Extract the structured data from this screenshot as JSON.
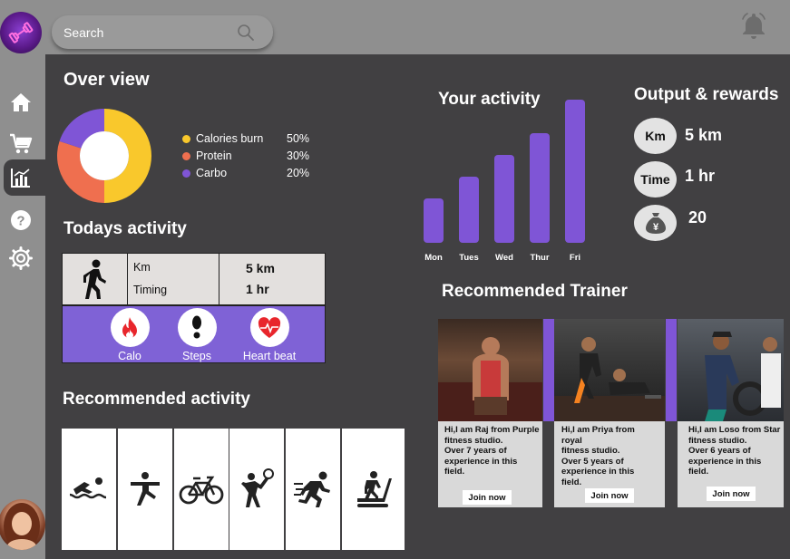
{
  "search": {
    "placeholder": "Search"
  },
  "icons": {
    "logo": "dumbbell-icon",
    "bell": "bell-icon",
    "search": "search-icon"
  },
  "sidebar": {
    "items": [
      "home-icon",
      "cart-icon",
      "chart-icon",
      "help-icon",
      "settings-icon"
    ],
    "active_index": 2
  },
  "overview": {
    "title": "Over view",
    "legend": [
      {
        "label": "Calories burn",
        "value": "50%",
        "color": "#f9c82c"
      },
      {
        "label": "Protein",
        "value": "30%",
        "color": "#ef6f4f"
      },
      {
        "label": "Carbo",
        "value": "20%",
        "color": "#7f55d6"
      }
    ],
    "chart_data": {
      "type": "pie",
      "categories": [
        "Calories burn",
        "Protein",
        "Carbo"
      ],
      "values": [
        50,
        30,
        20
      ],
      "colors": [
        "#f9c82c",
        "#ef6f4f",
        "#7f55d6"
      ],
      "title": ""
    }
  },
  "todays_activity": {
    "title": "Todays activity",
    "rows": [
      {
        "label": "Km",
        "value": "5 km"
      },
      {
        "label": "Timing",
        "value": "1 hr"
      }
    ],
    "metrics": [
      {
        "label": "Calo",
        "icon": "flame-icon"
      },
      {
        "label": "Steps",
        "icon": "footsteps-icon"
      },
      {
        "label": "Heart beat",
        "icon": "heartbeat-icon"
      }
    ]
  },
  "recommended_activity": {
    "title": "Recommended activity",
    "items": [
      "swimming-icon",
      "stretching-icon",
      "cycling-icon",
      "tennis-icon",
      "running-icon",
      "treadmill-icon"
    ]
  },
  "your_activity": {
    "title": "Your activity",
    "chart_data": {
      "type": "bar",
      "categories": [
        "Mon",
        "Tues",
        "Wed",
        "Thur",
        "Fri"
      ],
      "values": [
        2,
        3,
        4,
        5,
        6.5
      ],
      "color": "#7f55d6",
      "ylim": [
        0,
        7
      ]
    }
  },
  "rewards": {
    "title": "Output & rewards",
    "items": [
      {
        "badge": "Km",
        "value": "5 km"
      },
      {
        "badge": "Time",
        "value": "1 hr"
      },
      {
        "badge": "¥",
        "value": "20",
        "icon": "money-bag-icon"
      }
    ]
  },
  "trainers": {
    "title": "Recommended Trainer",
    "join_label": "Join now",
    "items": [
      {
        "lines": [
          "Hi,I am Raj from Purple",
          "fitness studio.",
          "Over 7 years of",
          "experience in this",
          "field."
        ]
      },
      {
        "lines": [
          "Hi,I am Priya from",
          "royal",
          "fitness studio.",
          "Over 5 years of",
          "experience in this",
          "field."
        ]
      },
      {
        "lines": [
          "Hi,I am Loso from Star",
          "fitness studio.",
          "Over 6 years of",
          "experience in this",
          "field."
        ]
      }
    ]
  }
}
